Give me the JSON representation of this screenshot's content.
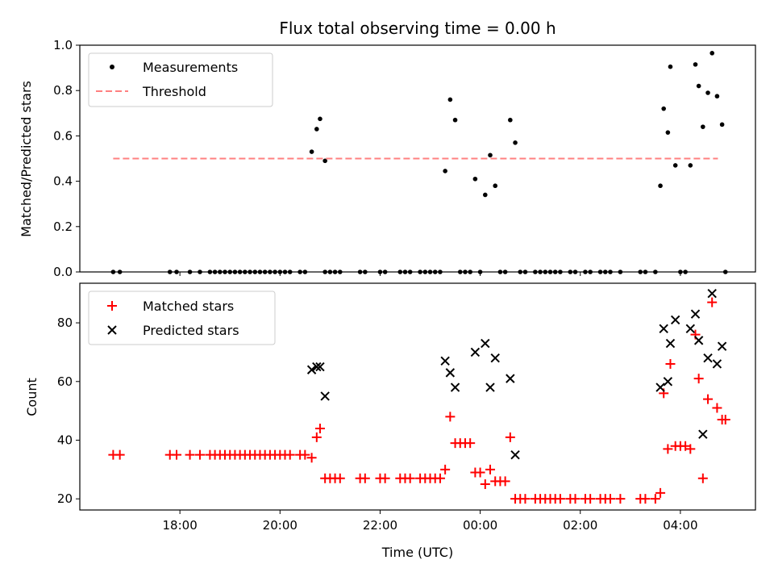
{
  "figure": {
    "title": "Flux total observing time = 0.00 h",
    "xlabel": "Time (UTC)",
    "x_ticks": [
      "18:00",
      "20:00",
      "22:00",
      "00:00",
      "02:00",
      "04:00"
    ]
  },
  "chart_data": [
    {
      "type": "scatter",
      "panel": "top",
      "ylabel": "Matched/Predicted stars",
      "ylim": [
        0,
        1.0
      ],
      "y_ticks": [
        "0.0",
        "0.2",
        "0.4",
        "0.6",
        "0.8",
        "1.0"
      ],
      "x_range": [
        "16:00",
        "05:30"
      ],
      "legend": {
        "placement": "top-left",
        "entries": [
          "Measurements",
          "Threshold"
        ]
      },
      "series": [
        {
          "name": "Measurements",
          "color": "#000000",
          "marker": "dot",
          "points": [
            [
              "16:40",
              0.0
            ],
            [
              "16:48",
              0.0
            ],
            [
              "17:48",
              0.0
            ],
            [
              "17:56",
              0.0
            ],
            [
              "18:12",
              0.0
            ],
            [
              "18:24",
              0.0
            ],
            [
              "18:36",
              0.0
            ],
            [
              "18:42",
              0.0
            ],
            [
              "18:48",
              0.0
            ],
            [
              "18:54",
              0.0
            ],
            [
              "19:00",
              0.0
            ],
            [
              "19:06",
              0.0
            ],
            [
              "19:12",
              0.0
            ],
            [
              "19:18",
              0.0
            ],
            [
              "19:24",
              0.0
            ],
            [
              "19:30",
              0.0
            ],
            [
              "19:36",
              0.0
            ],
            [
              "19:42",
              0.0
            ],
            [
              "19:48",
              0.0
            ],
            [
              "19:54",
              0.0
            ],
            [
              "20:00",
              0.0
            ],
            [
              "20:06",
              0.0
            ],
            [
              "20:12",
              0.0
            ],
            [
              "20:24",
              0.0
            ],
            [
              "20:30",
              0.0
            ],
            [
              "20:38",
              0.53
            ],
            [
              "20:44",
              0.63
            ],
            [
              "20:48",
              0.675
            ],
            [
              "20:54",
              0.49
            ],
            [
              "20:54",
              0.0
            ],
            [
              "21:00",
              0.0
            ],
            [
              "21:06",
              0.0
            ],
            [
              "21:12",
              0.0
            ],
            [
              "21:36",
              0.0
            ],
            [
              "21:42",
              0.0
            ],
            [
              "22:00",
              0.0
            ],
            [
              "22:06",
              0.0
            ],
            [
              "22:24",
              0.0
            ],
            [
              "22:30",
              0.0
            ],
            [
              "22:36",
              0.0
            ],
            [
              "22:48",
              0.0
            ],
            [
              "22:54",
              0.0
            ],
            [
              "23:00",
              0.0
            ],
            [
              "23:06",
              0.0
            ],
            [
              "23:12",
              0.0
            ],
            [
              "23:18",
              0.445
            ],
            [
              "23:24",
              0.76
            ],
            [
              "23:30",
              0.67
            ],
            [
              "23:36",
              0.0
            ],
            [
              "23:42",
              0.0
            ],
            [
              "23:48",
              0.0
            ],
            [
              "23:54",
              0.41
            ],
            [
              "00:00",
              0.0
            ],
            [
              "00:06",
              0.34
            ],
            [
              "00:12",
              0.515
            ],
            [
              "00:18",
              0.38
            ],
            [
              "00:24",
              0.0
            ],
            [
              "00:30",
              0.0
            ],
            [
              "00:36",
              0.67
            ],
            [
              "00:42",
              0.57
            ],
            [
              "00:48",
              0.0
            ],
            [
              "00:54",
              0.0
            ],
            [
              "01:06",
              0.0
            ],
            [
              "01:12",
              0.0
            ],
            [
              "01:18",
              0.0
            ],
            [
              "01:24",
              0.0
            ],
            [
              "01:30",
              0.0
            ],
            [
              "01:36",
              0.0
            ],
            [
              "01:48",
              0.0
            ],
            [
              "01:54",
              0.0
            ],
            [
              "02:06",
              0.0
            ],
            [
              "02:12",
              0.0
            ],
            [
              "02:24",
              0.0
            ],
            [
              "02:30",
              0.0
            ],
            [
              "02:36",
              0.0
            ],
            [
              "02:48",
              0.0
            ],
            [
              "03:12",
              0.0
            ],
            [
              "03:18",
              0.0
            ],
            [
              "03:30",
              0.0
            ],
            [
              "03:36",
              0.38
            ],
            [
              "03:40",
              0.72
            ],
            [
              "03:45",
              0.615
            ],
            [
              "03:48",
              0.905
            ],
            [
              "03:54",
              0.47
            ],
            [
              "04:00",
              0.0
            ],
            [
              "04:06",
              0.0
            ],
            [
              "04:12",
              0.47
            ],
            [
              "04:18",
              0.915
            ],
            [
              "04:22",
              0.82
            ],
            [
              "04:27",
              0.64
            ],
            [
              "04:33",
              0.79
            ],
            [
              "04:38",
              0.965
            ],
            [
              "04:44",
              0.775
            ],
            [
              "04:50",
              0.65
            ],
            [
              "04:54",
              0.0
            ]
          ]
        },
        {
          "name": "Threshold",
          "color": "#ff8080",
          "style": "dashed",
          "y": 0.5,
          "x_start": "16:40",
          "x_end": "04:45"
        }
      ]
    },
    {
      "type": "scatter",
      "panel": "bottom",
      "ylabel": "Count",
      "ylim": [
        16.2,
        93.5
      ],
      "y_ticks": [
        "20",
        "40",
        "60",
        "80"
      ],
      "x_range": [
        "16:00",
        "05:30"
      ],
      "legend": {
        "placement": "top-left",
        "entries": [
          "Matched stars",
          "Predicted stars"
        ]
      },
      "series": [
        {
          "name": "Matched stars",
          "color": "#ff0000",
          "marker": "plus",
          "points": [
            [
              "16:40",
              35
            ],
            [
              "16:48",
              35
            ],
            [
              "17:48",
              35
            ],
            [
              "17:56",
              35
            ],
            [
              "18:12",
              35
            ],
            [
              "18:24",
              35
            ],
            [
              "18:36",
              35
            ],
            [
              "18:42",
              35
            ],
            [
              "18:48",
              35
            ],
            [
              "18:54",
              35
            ],
            [
              "19:00",
              35
            ],
            [
              "19:06",
              35
            ],
            [
              "19:12",
              35
            ],
            [
              "19:18",
              35
            ],
            [
              "19:24",
              35
            ],
            [
              "19:30",
              35
            ],
            [
              "19:36",
              35
            ],
            [
              "19:42",
              35
            ],
            [
              "19:48",
              35
            ],
            [
              "19:54",
              35
            ],
            [
              "20:00",
              35
            ],
            [
              "20:06",
              35
            ],
            [
              "20:12",
              35
            ],
            [
              "20:24",
              35
            ],
            [
              "20:30",
              35
            ],
            [
              "20:38",
              34
            ],
            [
              "20:44",
              41
            ],
            [
              "20:48",
              44
            ],
            [
              "20:54",
              27
            ],
            [
              "21:00",
              27
            ],
            [
              "21:06",
              27
            ],
            [
              "21:12",
              27
            ],
            [
              "21:36",
              27
            ],
            [
              "21:42",
              27
            ],
            [
              "22:00",
              27
            ],
            [
              "22:06",
              27
            ],
            [
              "22:24",
              27
            ],
            [
              "22:30",
              27
            ],
            [
              "22:36",
              27
            ],
            [
              "22:48",
              27
            ],
            [
              "22:54",
              27
            ],
            [
              "23:00",
              27
            ],
            [
              "23:06",
              27
            ],
            [
              "23:12",
              27
            ],
            [
              "23:18",
              30
            ],
            [
              "23:24",
              48
            ],
            [
              "23:30",
              39
            ],
            [
              "23:36",
              39
            ],
            [
              "23:42",
              39
            ],
            [
              "23:48",
              39
            ],
            [
              "23:54",
              29
            ],
            [
              "24:00",
              29
            ],
            [
              "24:06",
              25
            ],
            [
              "24:12",
              30
            ],
            [
              "24:18",
              26
            ],
            [
              "24:24",
              26
            ],
            [
              "24:30",
              26
            ],
            [
              "24:36",
              41
            ],
            [
              "24:42",
              20
            ],
            [
              "24:48",
              20
            ],
            [
              "24:54",
              20
            ],
            [
              "25:06",
              20
            ],
            [
              "25:12",
              20
            ],
            [
              "25:18",
              20
            ],
            [
              "25:24",
              20
            ],
            [
              "25:30",
              20
            ],
            [
              "25:36",
              20
            ],
            [
              "25:48",
              20
            ],
            [
              "25:54",
              20
            ],
            [
              "26:06",
              20
            ],
            [
              "26:12",
              20
            ],
            [
              "26:24",
              20
            ],
            [
              "26:30",
              20
            ],
            [
              "26:36",
              20
            ],
            [
              "26:48",
              20
            ],
            [
              "27:12",
              20
            ],
            [
              "27:18",
              20
            ],
            [
              "27:30",
              20
            ],
            [
              "27:36",
              22
            ],
            [
              "27:40",
              56
            ],
            [
              "27:45",
              37
            ],
            [
              "27:48",
              66
            ],
            [
              "27:54",
              38
            ],
            [
              "28:00",
              38
            ],
            [
              "28:06",
              38
            ],
            [
              "28:12",
              37
            ],
            [
              "28:18",
              76
            ],
            [
              "28:22",
              61
            ],
            [
              "28:27",
              27
            ],
            [
              "28:33",
              54
            ],
            [
              "28:38",
              87
            ],
            [
              "28:44",
              51
            ],
            [
              "28:50",
              47
            ],
            [
              "28:54",
              47
            ]
          ]
        },
        {
          "name": "Predicted stars",
          "color": "#000000",
          "marker": "x",
          "points": [
            [
              "20:38",
              64
            ],
            [
              "20:44",
              65
            ],
            [
              "20:48",
              65
            ],
            [
              "20:54",
              55
            ],
            [
              "23:18",
              67
            ],
            [
              "23:24",
              63
            ],
            [
              "23:30",
              58
            ],
            [
              "23:54",
              70
            ],
            [
              "24:06",
              73
            ],
            [
              "24:12",
              58
            ],
            [
              "24:18",
              68
            ],
            [
              "24:36",
              61
            ],
            [
              "24:42",
              35
            ],
            [
              "27:36",
              58
            ],
            [
              "27:40",
              78
            ],
            [
              "27:45",
              60
            ],
            [
              "27:48",
              73
            ],
            [
              "27:54",
              81
            ],
            [
              "28:12",
              78
            ],
            [
              "28:18",
              83
            ],
            [
              "28:22",
              74
            ],
            [
              "28:27",
              42
            ],
            [
              "28:33",
              68
            ],
            [
              "28:38",
              90
            ],
            [
              "28:44",
              66
            ],
            [
              "28:50",
              72
            ]
          ]
        }
      ]
    }
  ]
}
